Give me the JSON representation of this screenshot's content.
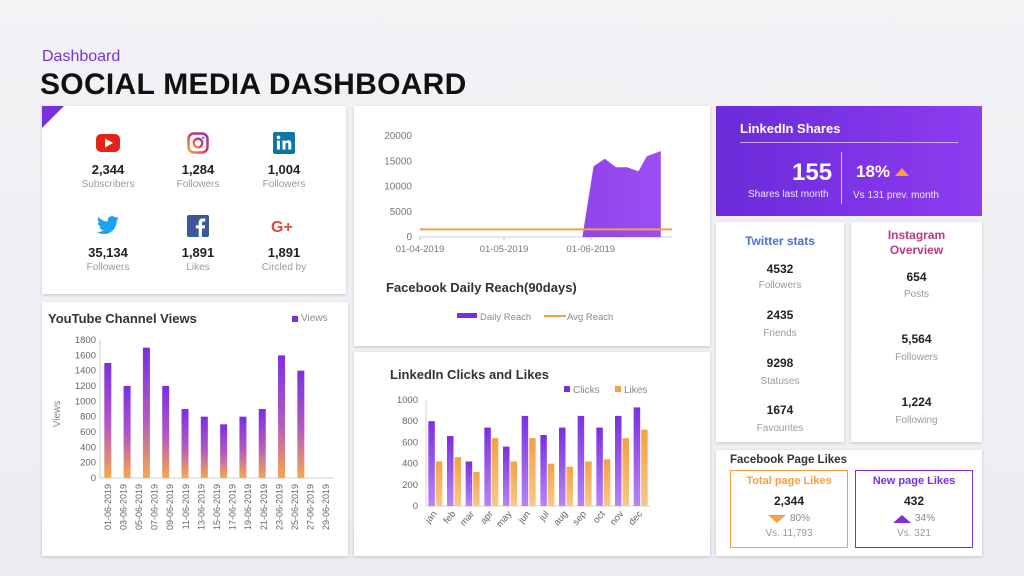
{
  "header": {
    "kicker": "Dashboard",
    "title": "SOCIAL MEDIA DASHBOARD"
  },
  "social": [
    {
      "icon": "youtube-icon",
      "value": "2,344",
      "label": "Subscribers"
    },
    {
      "icon": "instagram-icon",
      "value": "1,284",
      "label": "Followers"
    },
    {
      "icon": "linkedin-icon",
      "value": "1,004",
      "label": "Followers"
    },
    {
      "icon": "twitter-icon",
      "value": "35,134",
      "label": "Followers"
    },
    {
      "icon": "facebook-icon",
      "value": "1,891",
      "label": "Likes"
    },
    {
      "icon": "google-plus-icon",
      "value": "1,891",
      "label": "Circled by"
    }
  ],
  "colors": {
    "accent": "#7b2fe0",
    "orange": "#f5a142",
    "purple": "#7b2fe0",
    "youtube": "#e62117",
    "twitter": "#1da1f2",
    "facebook": "#3b5998",
    "linkedin": "#0e76a8",
    "gplus": "#dd4b39"
  },
  "linkedin_shares": {
    "title": "LinkedIn Shares",
    "value": "155",
    "value_label": "Shares last month",
    "pct": "18%",
    "pct_label": "Vs 131 prev. month"
  },
  "twitter": {
    "title": "Twitter stats",
    "stats": [
      {
        "value": "4532",
        "label": "Followers"
      },
      {
        "value": "2435",
        "label": "Friends"
      },
      {
        "value": "9298",
        "label": "Statuses"
      },
      {
        "value": "1674",
        "label": "Favourites"
      }
    ]
  },
  "instagram": {
    "title_line1": "Instagram",
    "title_line2": "Overview",
    "stats": [
      {
        "value": "654",
        "label": "Posts"
      },
      {
        "value": "5,564",
        "label": "Followers"
      },
      {
        "value": "1,224",
        "label": "Following"
      }
    ]
  },
  "facebook_likes": {
    "title": "Facebook Page Likes",
    "total": {
      "heading": "Total page Likes",
      "value": "2,344",
      "pct": "80%",
      "vs": "Vs. 11,793"
    },
    "new": {
      "heading": "New page Likes",
      "value": "432",
      "pct": "34%",
      "vs": "Vs. 321"
    }
  },
  "chart_data": [
    {
      "type": "bar",
      "title": "YouTube Channel Views",
      "ylabel": "Views",
      "legend": [
        "Views"
      ],
      "ylim": [
        0,
        1800
      ],
      "yticks": [
        0,
        200,
        400,
        600,
        800,
        1000,
        1200,
        1400,
        1600,
        1800
      ],
      "categories": [
        "01-06-2019",
        "03-06-2019",
        "05-06-2019",
        "07-06-2019",
        "09-06-2019",
        "11-06-2019",
        "13-06-2019",
        "15-06-2019",
        "17-06-2019",
        "19-06-2019",
        "21-06-2019",
        "23-06-2019",
        "25-06-2019",
        "27-06-2019",
        "29-06-2019"
      ],
      "values": [
        1500,
        1200,
        null,
        1700,
        1200,
        900,
        800,
        700,
        800,
        900,
        1600,
        1400,
        null,
        null,
        null
      ]
    },
    {
      "type": "area",
      "title": "Facebook Daily Reach(90days)",
      "legend": [
        "Daily Reach",
        "Avg Reach"
      ],
      "ylim": [
        0,
        20000
      ],
      "yticks": [
        0,
        5000,
        10000,
        15000,
        20000
      ],
      "xticks": [
        "01-04-2019",
        "01-05-2019",
        "01-06-2019"
      ],
      "daily_reach": [
        [
          0,
          0
        ],
        [
          58,
          0
        ],
        [
          62,
          14000
        ],
        [
          66,
          15500
        ],
        [
          70,
          13800
        ],
        [
          74,
          13800
        ],
        [
          78,
          13000
        ],
        [
          81,
          16000
        ],
        [
          86,
          17000
        ],
        [
          86,
          0
        ]
      ],
      "avg_reach": 1500
    },
    {
      "type": "bar",
      "title": "LinkedIn Clicks and Likes",
      "legend": [
        "Clicks",
        "Likes"
      ],
      "ylim": [
        0,
        1000
      ],
      "yticks": [
        0,
        200,
        400,
        600,
        800,
        1000
      ],
      "categories": [
        "jan",
        "feb",
        "mar",
        "apr",
        "may",
        "jun",
        "jul",
        "aug",
        "sep",
        "oct",
        "nov",
        "dec"
      ],
      "series": [
        {
          "name": "Clicks",
          "values": [
            800,
            660,
            420,
            740,
            560,
            850,
            670,
            740,
            850,
            740,
            850,
            930
          ]
        },
        {
          "name": "Likes",
          "values": [
            420,
            460,
            320,
            640,
            420,
            640,
            400,
            370,
            420,
            440,
            640,
            720
          ]
        }
      ]
    }
  ]
}
